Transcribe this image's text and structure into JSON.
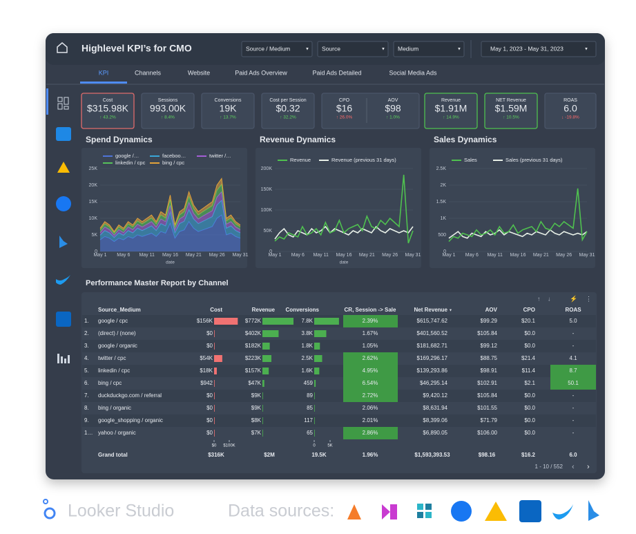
{
  "header": {
    "title": "Highlevel KPI’s for CMO",
    "filters": [
      "Source / Medium",
      "Source",
      "Medium"
    ],
    "date_range": "May 1, 2023 - May 31, 2023"
  },
  "tabs": {
    "items": [
      "KPI",
      "Channels",
      "Website",
      "Paid Ads Overview",
      "Paid Ads Detailed",
      "Social Media Ads"
    ],
    "active": 0
  },
  "kpis": [
    {
      "label": "Cost",
      "value": "$315.98K",
      "change": "↑ 43.2%",
      "border_color": "#e06b6b",
      "change_color": "#5fd35f"
    },
    {
      "label": "Sessions",
      "value": "993.00K",
      "change": "↑ 8.4%",
      "border_color": "#4a5568",
      "change_color": "#5fd35f"
    },
    {
      "label": "Conversions",
      "value": "19K",
      "change": "↑ 13.7%",
      "border_color": "#4a5568",
      "change_color": "#5fd35f"
    },
    {
      "label": "Cost per Session",
      "value": "$0.32",
      "change": "↑ 32.2%",
      "border_color": "#4a5568",
      "change_color": "#5fd35f"
    },
    {
      "label": "CPO",
      "value": "$16",
      "change": "↑ 26.0%",
      "border_color": "#4a5568",
      "change_color": "#ff6b6b"
    },
    {
      "label": "AOV",
      "value": "$98",
      "change": "↑ 1.0%",
      "border_color": "#4a5568",
      "change_color": "#5fd35f"
    },
    {
      "label": "Revenue",
      "value": "$1.91M",
      "change": "↑ 14.9%",
      "border_color": "#4fc14f",
      "change_color": "#5fd35f"
    },
    {
      "label": "NET Revenue",
      "value": "$1.59M",
      "change": "↑ 10.5%",
      "border_color": "#4fc14f",
      "change_color": "#5fd35f"
    },
    {
      "label": "ROAS",
      "value": "6.0",
      "change": "↓ -19.8%",
      "border_color": "#4a5568",
      "change_color": "#ff6b6b"
    }
  ],
  "chart_data": [
    {
      "type": "area",
      "title": "Spend Dynamics",
      "x_label": "date",
      "stacked": true,
      "categories": [
        "May 1",
        null,
        null,
        null,
        null,
        "May 6",
        null,
        null,
        null,
        null,
        "May 11",
        null,
        null,
        null,
        null,
        "May 16",
        null,
        null,
        null,
        null,
        "May 21",
        null,
        null,
        null,
        null,
        "May 26",
        null,
        null,
        null,
        null,
        "May 31"
      ],
      "ylim": [
        0,
        25000
      ],
      "yticks": [
        0,
        {
          "value": 5000,
          "label": "5K"
        },
        {
          "value": 10000,
          "label": "10K"
        },
        {
          "value": 15000,
          "label": "15K"
        },
        {
          "value": 20000,
          "label": "20K"
        },
        {
          "value": 25000,
          "label": "25K"
        }
      ],
      "series": [
        {
          "name": "google /…",
          "color": "#4f74d9",
          "values": [
            3500,
            4500,
            4000,
            3000,
            4000,
            3500,
            4500,
            4000,
            5000,
            4500,
            5000,
            5500,
            4500,
            6000,
            5500,
            8500,
            4000,
            6000,
            6500,
            9000,
            7000,
            6000,
            6500,
            7000,
            7500,
            10000,
            11000,
            5000,
            5500,
            4500,
            4000
          ]
        },
        {
          "name": "faceboo…",
          "color": "#3aa6d8",
          "values": [
            1400,
            1800,
            1600,
            1200,
            1600,
            1400,
            1800,
            1600,
            2000,
            1800,
            2000,
            2200,
            1800,
            2400,
            2200,
            3400,
            1600,
            2400,
            2600,
            3600,
            2800,
            2400,
            2600,
            2800,
            3000,
            4000,
            4400,
            2000,
            2200,
            1800,
            1600
          ]
        },
        {
          "name": "twitter /…",
          "color": "#a45fd6",
          "values": [
            800,
            1100,
            1000,
            700,
            1000,
            800,
            1100,
            1000,
            1200,
            1100,
            1200,
            1300,
            1100,
            1400,
            1300,
            2000,
            1000,
            1400,
            1600,
            2200,
            1700,
            1400,
            1600,
            1700,
            1800,
            2400,
            2600,
            1200,
            1300,
            1100,
            1000
          ]
        },
        {
          "name": "linkedin / cpc",
          "color": "#56c25a",
          "values": [
            700,
            900,
            800,
            600,
            800,
            700,
            900,
            800,
            1000,
            900,
            1000,
            1100,
            900,
            1200,
            1100,
            1700,
            800,
            1200,
            1300,
            1800,
            1400,
            1200,
            1300,
            1400,
            1500,
            2000,
            2200,
            1000,
            1100,
            900,
            800
          ]
        },
        {
          "name": "bing / cpc",
          "color": "#e3a33a",
          "values": [
            600,
            700,
            600,
            500,
            600,
            600,
            700,
            600,
            800,
            700,
            800,
            900,
            700,
            1000,
            900,
            1400,
            600,
            1000,
            1000,
            1400,
            1100,
            1000,
            1000,
            1100,
            1200,
            1600,
            1800,
            800,
            900,
            700,
            600
          ]
        }
      ]
    },
    {
      "type": "line",
      "title": "Revenue Dynamics",
      "x_label": "date",
      "categories": [
        "May 1",
        null,
        null,
        null,
        null,
        "May 6",
        null,
        null,
        null,
        null,
        "May 11",
        null,
        null,
        null,
        null,
        "May 16",
        null,
        null,
        null,
        null,
        "May 21",
        null,
        null,
        null,
        null,
        "May 26",
        null,
        null,
        null,
        null,
        "May 31"
      ],
      "ylim": [
        0,
        200000
      ],
      "yticks": [
        0,
        {
          "value": 50000,
          "label": "50K"
        },
        {
          "value": 100000,
          "label": "100K"
        },
        {
          "value": 150000,
          "label": "150K"
        },
        {
          "value": 200000,
          "label": "200K"
        }
      ],
      "series": [
        {
          "name": "Revenue",
          "color": "#4fc14f",
          "values": [
            25000,
            35000,
            30000,
            45000,
            40000,
            35000,
            60000,
            40000,
            45000,
            55000,
            40000,
            70000,
            45000,
            50000,
            75000,
            45000,
            55000,
            60000,
            65000,
            50000,
            85000,
            60000,
            55000,
            75000,
            65000,
            80000,
            70000,
            60000,
            185000,
            20000,
            50000
          ]
        },
        {
          "name": "Revenue (previous 31 days)",
          "color": "#e8f0e8",
          "values": [
            30000,
            45000,
            55000,
            40000,
            35000,
            50000,
            45000,
            40000,
            55000,
            45000,
            50000,
            60000,
            45000,
            55000,
            50000,
            45000,
            40000,
            50000,
            45000,
            55000,
            50000,
            45000,
            60000,
            50000,
            45000,
            55000,
            50000,
            45000,
            50000,
            45000,
            60000
          ]
        }
      ]
    },
    {
      "type": "line",
      "title": "Sales Dynamics",
      "categories": [
        "May 1",
        null,
        null,
        null,
        null,
        "May 6",
        null,
        null,
        null,
        null,
        "May 11",
        null,
        null,
        null,
        null,
        "May 16",
        null,
        null,
        null,
        null,
        "May 21",
        null,
        null,
        null,
        null,
        "May 26",
        null,
        null,
        null,
        null,
        "May 31"
      ],
      "ylim": [
        0,
        2500
      ],
      "yticks": [
        0,
        500,
        {
          "value": 1000,
          "label": "1K"
        },
        {
          "value": 1500,
          "label": "1.5K"
        },
        {
          "value": 2000,
          "label": "2K"
        },
        {
          "value": 2500,
          "label": "2.5K"
        }
      ],
      "series": [
        {
          "name": "Sales",
          "color": "#4fc14f",
          "values": [
            300,
            450,
            400,
            550,
            500,
            450,
            650,
            500,
            550,
            650,
            500,
            750,
            550,
            600,
            800,
            550,
            650,
            700,
            750,
            600,
            900,
            700,
            650,
            850,
            750,
            900,
            800,
            700,
            1900,
            350,
            600
          ]
        },
        {
          "name": "Sales (previous 31 days)",
          "color": "#e8f0e8",
          "values": [
            400,
            500,
            600,
            450,
            400,
            550,
            500,
            450,
            600,
            500,
            550,
            650,
            500,
            600,
            550,
            500,
            450,
            550,
            500,
            600,
            550,
            500,
            650,
            550,
            500,
            600,
            550,
            500,
            550,
            500,
            600
          ]
        }
      ]
    }
  ],
  "table": {
    "title": "Performance Master Report by Channel",
    "columns": [
      "Source_Medium",
      "Cost",
      "Revenue",
      "Conversions",
      "CR, Session -> Sale",
      "Net Revenue",
      "AOV",
      "CPO",
      "ROAS"
    ],
    "cost_axis": [
      {
        "value": 0,
        "label": "$0"
      },
      {
        "value": 100000,
        "label": "$100K"
      }
    ],
    "conversions_axis": [
      0,
      {
        "value": 5000,
        "label": "5K"
      }
    ],
    "bar_colors": {
      "cost": "#f07272",
      "revenue": "#4caf50",
      "conversions": "#4caf50"
    },
    "highlight_color": "#3f9a45",
    "rows": [
      {
        "index": "1.",
        "source": "google / cpc",
        "cost": {
          "value": 156000,
          "label": "$156K"
        },
        "revenue": {
          "value": 772000,
          "label": "$772K"
        },
        "conversions": {
          "value": 7800,
          "label": "7.8K"
        },
        "cr": "2.39%",
        "cr_highlight": true,
        "net_revenue": "$615,747.62",
        "aov": "$99.29",
        "cpo": "$20.1",
        "roas": "5.0",
        "roas_highlight": false
      },
      {
        "index": "2.",
        "source": "(direct) / (none)",
        "cost": {
          "value": 0,
          "label": "$0"
        },
        "revenue": {
          "value": 402000,
          "label": "$402K"
        },
        "conversions": {
          "value": 3800,
          "label": "3.8K"
        },
        "cr": "1.67%",
        "cr_highlight": false,
        "net_revenue": "$401,560.52",
        "aov": "$105.84",
        "cpo": "$0.0",
        "roas": "-",
        "roas_highlight": false
      },
      {
        "index": "3.",
        "source": "google / organic",
        "cost": {
          "value": 0,
          "label": "$0"
        },
        "revenue": {
          "value": 182000,
          "label": "$182K"
        },
        "conversions": {
          "value": 1800,
          "label": "1.8K"
        },
        "cr": "1.05%",
        "cr_highlight": false,
        "net_revenue": "$181,682.71",
        "aov": "$99.12",
        "cpo": "$0.0",
        "roas": "-",
        "roas_highlight": false
      },
      {
        "index": "4.",
        "source": "twitter / cpc",
        "cost": {
          "value": 54000,
          "label": "$54K"
        },
        "revenue": {
          "value": 223000,
          "label": "$223K"
        },
        "conversions": {
          "value": 2500,
          "label": "2.5K"
        },
        "cr": "2.62%",
        "cr_highlight": true,
        "net_revenue": "$169,296.17",
        "aov": "$88.75",
        "cpo": "$21.4",
        "roas": "4.1",
        "roas_highlight": false
      },
      {
        "index": "5.",
        "source": "linkedin / cpc",
        "cost": {
          "value": 18000,
          "label": "$18K"
        },
        "revenue": {
          "value": 157000,
          "label": "$157K"
        },
        "conversions": {
          "value": 1600,
          "label": "1.6K"
        },
        "cr": "4.95%",
        "cr_highlight": true,
        "net_revenue": "$139,293.86",
        "aov": "$98.91",
        "cpo": "$11.4",
        "roas": "8.7",
        "roas_highlight": true
      },
      {
        "index": "6.",
        "source": "bing / cpc",
        "cost": {
          "value": 942,
          "label": "$942"
        },
        "revenue": {
          "value": 47000,
          "label": "$47K"
        },
        "conversions": {
          "value": 459,
          "label": "459"
        },
        "cr": "6.54%",
        "cr_highlight": true,
        "net_revenue": "$46,295.14",
        "aov": "$102.91",
        "cpo": "$2.1",
        "roas": "50.1",
        "roas_highlight": true
      },
      {
        "index": "7.",
        "source": "duckduckgo.com / referral",
        "cost": {
          "value": 0,
          "label": "$0"
        },
        "revenue": {
          "value": 9000,
          "label": "$9K"
        },
        "conversions": {
          "value": 89,
          "label": "89"
        },
        "cr": "2.72%",
        "cr_highlight": true,
        "net_revenue": "$9,420.12",
        "aov": "$105.84",
        "cpo": "$0.0",
        "roas": "-",
        "roas_highlight": false
      },
      {
        "index": "8.",
        "source": "bing / organic",
        "cost": {
          "value": 0,
          "label": "$0"
        },
        "revenue": {
          "value": 9000,
          "label": "$9K"
        },
        "conversions": {
          "value": 85,
          "label": "85"
        },
        "cr": "2.06%",
        "cr_highlight": false,
        "net_revenue": "$8,631.94",
        "aov": "$101.55",
        "cpo": "$0.0",
        "roas": "-",
        "roas_highlight": false
      },
      {
        "index": "9.",
        "source": "google_shopping / organic",
        "cost": {
          "value": 0,
          "label": "$0"
        },
        "revenue": {
          "value": 8000,
          "label": "$8K"
        },
        "conversions": {
          "value": 117,
          "label": "117"
        },
        "cr": "2.01%",
        "cr_highlight": false,
        "net_revenue": "$8,399.06",
        "aov": "$71.79",
        "cpo": "$0.0",
        "roas": "-",
        "roas_highlight": false
      },
      {
        "index": "1…",
        "source": "yahoo / organic",
        "cost": {
          "value": 0,
          "label": "$0"
        },
        "revenue": {
          "value": 7000,
          "label": "$7K"
        },
        "conversions": {
          "value": 65,
          "label": "65"
        },
        "cr": "2.86%",
        "cr_highlight": true,
        "net_revenue": "$6,890.05",
        "aov": "$106.00",
        "cpo": "$0.0",
        "roas": "-",
        "roas_highlight": false
      }
    ],
    "grand_total": [
      "Grand total",
      "$316K",
      "$2M",
      "19.5K",
      "1.96%",
      "$1,593,393.53",
      "$98.16",
      "$16.2",
      "6.0"
    ],
    "pagination": "1 - 10 / 552"
  },
  "footer": {
    "brand": "Looker Studio",
    "sources_label": "Data sources:"
  }
}
